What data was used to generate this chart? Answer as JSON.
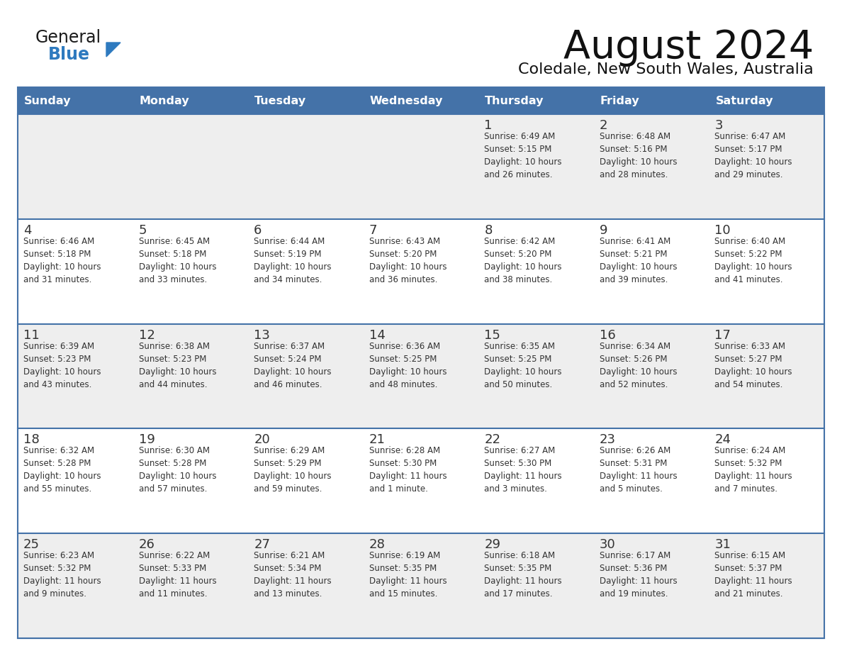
{
  "title": "August 2024",
  "subtitle": "Coledale, New South Wales, Australia",
  "days_of_week": [
    "Sunday",
    "Monday",
    "Tuesday",
    "Wednesday",
    "Thursday",
    "Friday",
    "Saturday"
  ],
  "header_bg": "#4472a8",
  "header_text": "#ffffff",
  "row_bg_odd": "#eeeeee",
  "row_bg_even": "#ffffff",
  "separator_color": "#4472a8",
  "text_color": "#333333",
  "calendar_data": [
    [
      {
        "day": "",
        "info": ""
      },
      {
        "day": "",
        "info": ""
      },
      {
        "day": "",
        "info": ""
      },
      {
        "day": "",
        "info": ""
      },
      {
        "day": "1",
        "info": "Sunrise: 6:49 AM\nSunset: 5:15 PM\nDaylight: 10 hours\nand 26 minutes."
      },
      {
        "day": "2",
        "info": "Sunrise: 6:48 AM\nSunset: 5:16 PM\nDaylight: 10 hours\nand 28 minutes."
      },
      {
        "day": "3",
        "info": "Sunrise: 6:47 AM\nSunset: 5:17 PM\nDaylight: 10 hours\nand 29 minutes."
      }
    ],
    [
      {
        "day": "4",
        "info": "Sunrise: 6:46 AM\nSunset: 5:18 PM\nDaylight: 10 hours\nand 31 minutes."
      },
      {
        "day": "5",
        "info": "Sunrise: 6:45 AM\nSunset: 5:18 PM\nDaylight: 10 hours\nand 33 minutes."
      },
      {
        "day": "6",
        "info": "Sunrise: 6:44 AM\nSunset: 5:19 PM\nDaylight: 10 hours\nand 34 minutes."
      },
      {
        "day": "7",
        "info": "Sunrise: 6:43 AM\nSunset: 5:20 PM\nDaylight: 10 hours\nand 36 minutes."
      },
      {
        "day": "8",
        "info": "Sunrise: 6:42 AM\nSunset: 5:20 PM\nDaylight: 10 hours\nand 38 minutes."
      },
      {
        "day": "9",
        "info": "Sunrise: 6:41 AM\nSunset: 5:21 PM\nDaylight: 10 hours\nand 39 minutes."
      },
      {
        "day": "10",
        "info": "Sunrise: 6:40 AM\nSunset: 5:22 PM\nDaylight: 10 hours\nand 41 minutes."
      }
    ],
    [
      {
        "day": "11",
        "info": "Sunrise: 6:39 AM\nSunset: 5:23 PM\nDaylight: 10 hours\nand 43 minutes."
      },
      {
        "day": "12",
        "info": "Sunrise: 6:38 AM\nSunset: 5:23 PM\nDaylight: 10 hours\nand 44 minutes."
      },
      {
        "day": "13",
        "info": "Sunrise: 6:37 AM\nSunset: 5:24 PM\nDaylight: 10 hours\nand 46 minutes."
      },
      {
        "day": "14",
        "info": "Sunrise: 6:36 AM\nSunset: 5:25 PM\nDaylight: 10 hours\nand 48 minutes."
      },
      {
        "day": "15",
        "info": "Sunrise: 6:35 AM\nSunset: 5:25 PM\nDaylight: 10 hours\nand 50 minutes."
      },
      {
        "day": "16",
        "info": "Sunrise: 6:34 AM\nSunset: 5:26 PM\nDaylight: 10 hours\nand 52 minutes."
      },
      {
        "day": "17",
        "info": "Sunrise: 6:33 AM\nSunset: 5:27 PM\nDaylight: 10 hours\nand 54 minutes."
      }
    ],
    [
      {
        "day": "18",
        "info": "Sunrise: 6:32 AM\nSunset: 5:28 PM\nDaylight: 10 hours\nand 55 minutes."
      },
      {
        "day": "19",
        "info": "Sunrise: 6:30 AM\nSunset: 5:28 PM\nDaylight: 10 hours\nand 57 minutes."
      },
      {
        "day": "20",
        "info": "Sunrise: 6:29 AM\nSunset: 5:29 PM\nDaylight: 10 hours\nand 59 minutes."
      },
      {
        "day": "21",
        "info": "Sunrise: 6:28 AM\nSunset: 5:30 PM\nDaylight: 11 hours\nand 1 minute."
      },
      {
        "day": "22",
        "info": "Sunrise: 6:27 AM\nSunset: 5:30 PM\nDaylight: 11 hours\nand 3 minutes."
      },
      {
        "day": "23",
        "info": "Sunrise: 6:26 AM\nSunset: 5:31 PM\nDaylight: 11 hours\nand 5 minutes."
      },
      {
        "day": "24",
        "info": "Sunrise: 6:24 AM\nSunset: 5:32 PM\nDaylight: 11 hours\nand 7 minutes."
      }
    ],
    [
      {
        "day": "25",
        "info": "Sunrise: 6:23 AM\nSunset: 5:32 PM\nDaylight: 11 hours\nand 9 minutes."
      },
      {
        "day": "26",
        "info": "Sunrise: 6:22 AM\nSunset: 5:33 PM\nDaylight: 11 hours\nand 11 minutes."
      },
      {
        "day": "27",
        "info": "Sunrise: 6:21 AM\nSunset: 5:34 PM\nDaylight: 11 hours\nand 13 minutes."
      },
      {
        "day": "28",
        "info": "Sunrise: 6:19 AM\nSunset: 5:35 PM\nDaylight: 11 hours\nand 15 minutes."
      },
      {
        "day": "29",
        "info": "Sunrise: 6:18 AM\nSunset: 5:35 PM\nDaylight: 11 hours\nand 17 minutes."
      },
      {
        "day": "30",
        "info": "Sunrise: 6:17 AM\nSunset: 5:36 PM\nDaylight: 11 hours\nand 19 minutes."
      },
      {
        "day": "31",
        "info": "Sunrise: 6:15 AM\nSunset: 5:37 PM\nDaylight: 11 hours\nand 21 minutes."
      }
    ]
  ],
  "logo_general_color": "#1a1a1a",
  "logo_blue_color": "#2e7abf",
  "figsize": [
    11.88,
    9.18
  ],
  "dpi": 100
}
